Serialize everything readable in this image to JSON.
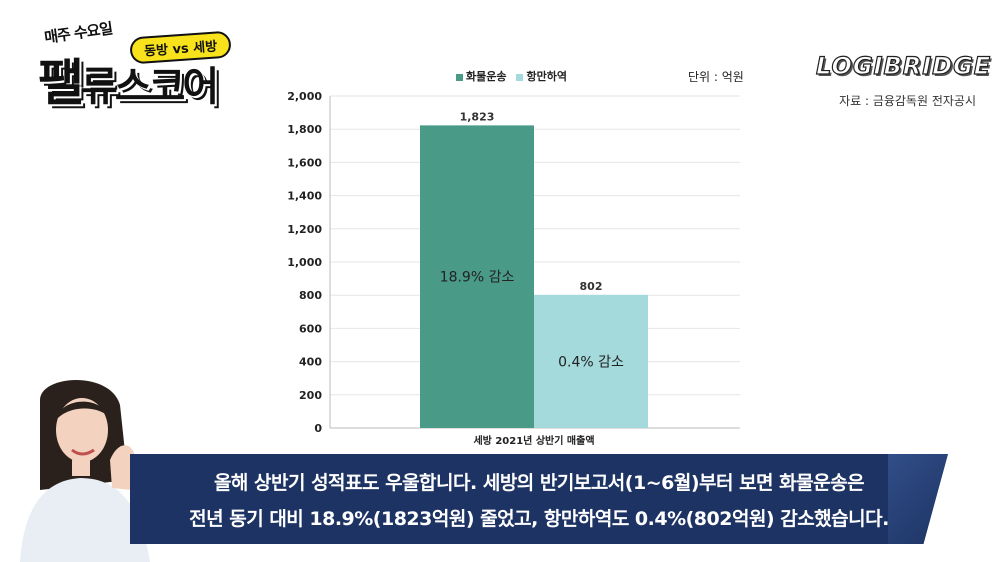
{
  "logo": {
    "subtitle": "매주 수요일",
    "pill": "동방 vs 세방",
    "main_big": "팰",
    "main_rest": "류스코어"
  },
  "brand": {
    "name": "LOGIBRIDGE",
    "source": "자료 : 금융감독원 전자공시"
  },
  "chart_data": {
    "type": "bar",
    "unit_label": "단위 : 억원",
    "categories": [
      "세방 2021년 상반기 매출액"
    ],
    "series": [
      {
        "name": "화물운송",
        "values": [
          1823
        ],
        "value_label": "1,823",
        "inner_label": "18.9% 감소",
        "color": "#4a9a88"
      },
      {
        "name": "항만하역",
        "values": [
          802
        ],
        "value_label": "802",
        "inner_label": "0.4% 감소",
        "color": "#a4dadc"
      }
    ],
    "ylim": [
      0,
      2000
    ],
    "yticks": [
      0,
      200,
      400,
      600,
      800,
      1000,
      1200,
      1400,
      1600,
      1800,
      2000
    ],
    "ytick_labels": [
      "0",
      "200",
      "400",
      "600",
      "800",
      "1,000",
      "1,200",
      "1,400",
      "1,600",
      "1,800",
      "2,000"
    ],
    "grid": true,
    "legend_position": "top-center"
  },
  "caption": {
    "line1": "올해 상반기 성적표도 우울합니다. 세방의 반기보고서(1~6월)부터 보면 화물운송은",
    "line2": "전년 동기 대비 18.9%(1823억원) 줄었고, 항만하역도 0.4%(802억원) 감소했습니다."
  }
}
